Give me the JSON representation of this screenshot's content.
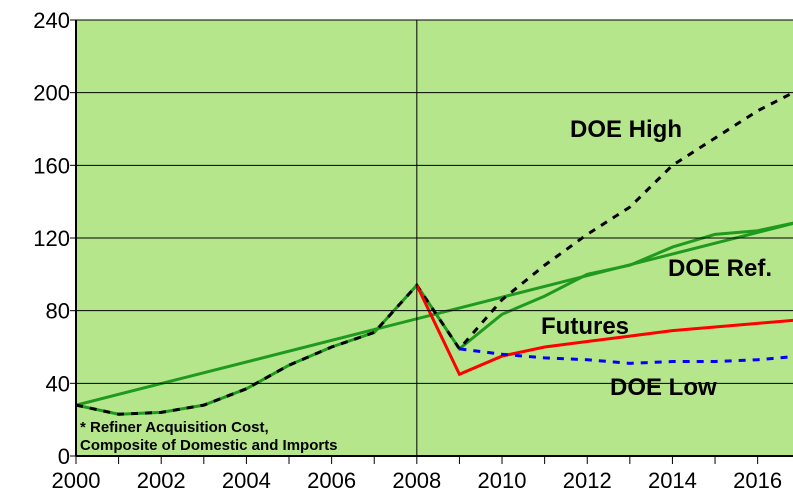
{
  "chart_data": {
    "type": "line",
    "xlim": [
      2000,
      2016.83
    ],
    "ylim": [
      0,
      240
    ],
    "yticks": [
      0,
      40,
      80,
      120,
      160,
      200,
      240
    ],
    "xticks": [
      2000,
      2002,
      2004,
      2006,
      2008,
      2010,
      2012,
      2014,
      2016
    ],
    "xminorticks": [
      2001,
      2003,
      2005,
      2007,
      2009,
      2011,
      2013,
      2015
    ],
    "grid": true,
    "vlines": [
      2008
    ],
    "background": "#b6e68c",
    "annotations": [
      "* Refiner Acquisition Cost,",
      "Composite of Domestic and Imports"
    ],
    "series": [
      {
        "color": "#1f9a1f",
        "line_style": "solid",
        "x": [
          2000,
          2017
        ],
        "values": [
          28,
          129
        ]
      },
      {
        "name": "DOE Ref.",
        "color": "#1f9a1f",
        "line_style": "solid",
        "x": [
          2000,
          2001,
          2002,
          2003,
          2004,
          2005,
          2006,
          2007,
          2008,
          2009,
          2010,
          2011,
          2012,
          2013,
          2014,
          2015,
          2016,
          2017
        ],
        "values": [
          28,
          23,
          24,
          28,
          37,
          50,
          60,
          68,
          94,
          59,
          78,
          88,
          100,
          105,
          115,
          122,
          124,
          129
        ]
      },
      {
        "name": "DOE High",
        "color": "#000000",
        "line_style": "dashed",
        "x": [
          2000,
          2001,
          2002,
          2003,
          2004,
          2005,
          2006,
          2007,
          2008,
          2009,
          2010,
          2011,
          2012,
          2013,
          2014,
          2015,
          2016,
          2017
        ],
        "values": [
          28,
          23,
          24,
          28,
          37,
          50,
          60,
          68,
          94,
          59,
          86,
          105,
          122,
          137,
          160,
          175,
          190,
          202
        ]
      },
      {
        "name": "Futures",
        "color": "#ff0000",
        "line_style": "solid",
        "x": [
          2008,
          2009,
          2010,
          2011,
          2012,
          2013,
          2014,
          2015,
          2016,
          2017
        ],
        "values": [
          94,
          45,
          55,
          60,
          63,
          66,
          69,
          71,
          73,
          75
        ]
      },
      {
        "name": "DOE Low",
        "color": "#0000ff",
        "line_style": "dashed",
        "x": [
          2009,
          2010,
          2011,
          2012,
          2013,
          2014,
          2015,
          2016,
          2017
        ],
        "values": [
          59,
          56,
          54,
          53,
          51,
          52,
          52,
          53,
          55
        ]
      }
    ]
  }
}
